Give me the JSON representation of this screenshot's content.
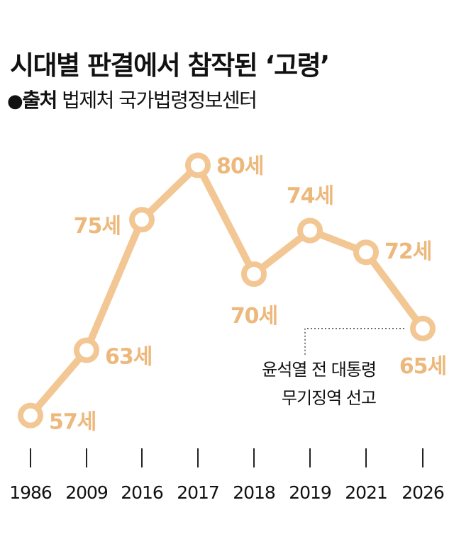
{
  "title": "시대별 판결에서 참작된 ‘고령’",
  "source": {
    "bullet": "●",
    "label": "출처",
    "text": "법제처 국가법령정보센터"
  },
  "colors": {
    "line": "#F2C793",
    "marker_stroke": "#F2C793",
    "marker_fill": "#FFFFFF",
    "value_label": "#EDB87B",
    "text": "#111111"
  },
  "chart_data": {
    "type": "line",
    "title": "시대별 판결에서 참작된 ‘고령’",
    "categories": [
      "1986",
      "2009",
      "2016",
      "2017",
      "2018",
      "2019",
      "2021",
      "2026"
    ],
    "values": [
      57,
      63,
      75,
      80,
      70,
      74,
      72,
      65
    ],
    "value_labels": [
      "57세",
      "63세",
      "75세",
      "80세",
      "70세",
      "74세",
      "72세",
      "65세"
    ],
    "ylim": [
      56,
      81
    ],
    "grid": false,
    "annotation": {
      "category": "2026",
      "lines": [
        "윤석열 전 대통령",
        "무기징역 선고"
      ]
    }
  }
}
